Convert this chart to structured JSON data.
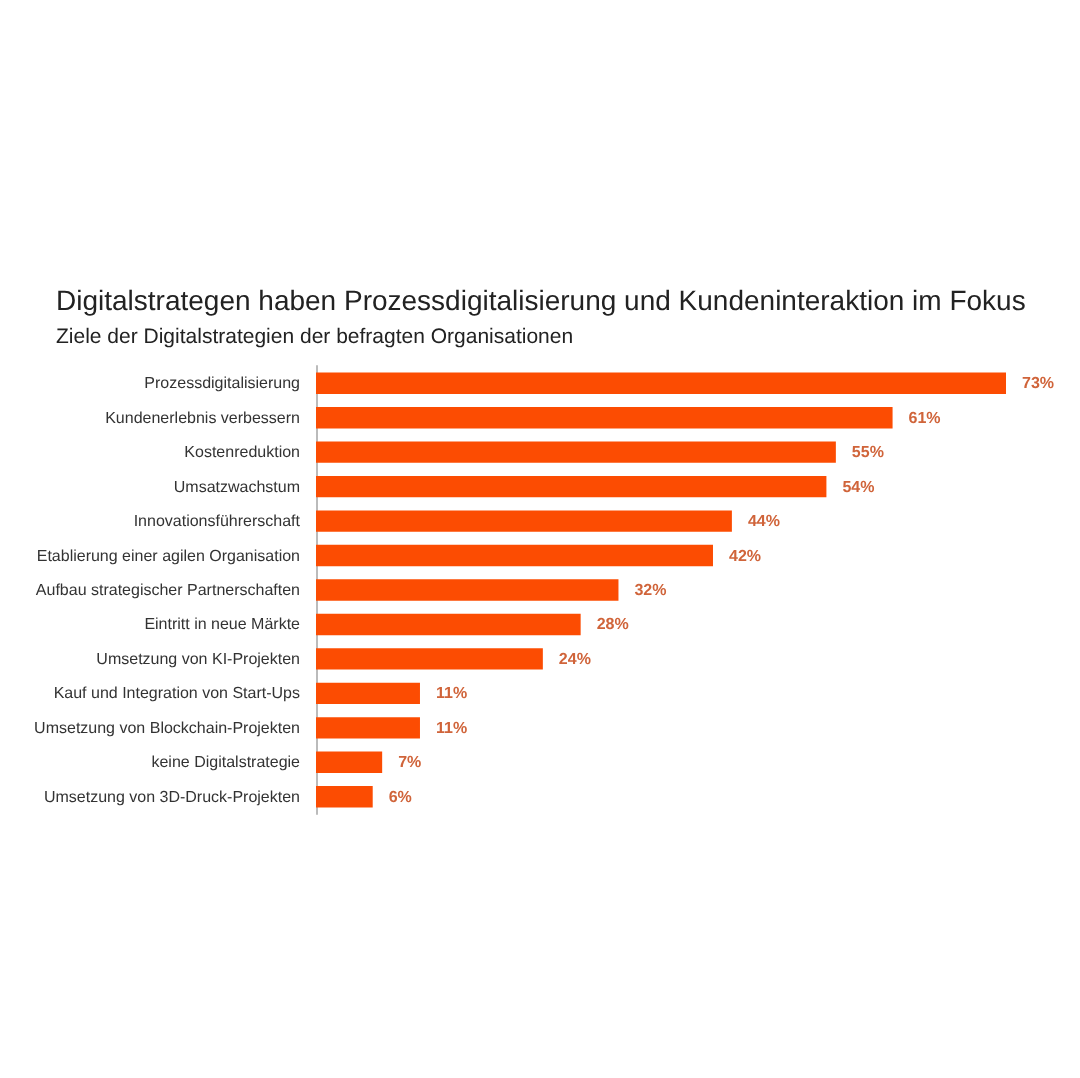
{
  "chart_data": {
    "type": "bar",
    "orientation": "horizontal",
    "title": "Digitalstrategen haben Prozessdigitalisierung und Kundeninteraktion im Fokus",
    "subtitle": "Ziele der Digitalstrategien der befragten Organisationen",
    "categories": [
      "Prozessdigitalisierung",
      "Kundenerlebnis verbessern",
      "Kostenreduktion",
      "Umsatzwachstum",
      "Innovationsführerschaft",
      "Etablierung einer agilen Organisation",
      "Aufbau strategischer Partnerschaften",
      "Eintritt in neue Märkte",
      "Umsetzung von KI-Projekten",
      "Kauf und Integration von Start-Ups",
      "Umsetzung von Blockchain-Projekten",
      "keine Digitalstrategie",
      "Umsetzung von 3D-Druck-Projekten"
    ],
    "values": [
      73,
      61,
      55,
      54,
      44,
      42,
      32,
      28,
      24,
      11,
      11,
      7,
      6
    ],
    "value_labels": [
      "73%",
      "61%",
      "55%",
      "54%",
      "44%",
      "42%",
      "32%",
      "28%",
      "24%",
      "11%",
      "11%",
      "7%",
      "6%"
    ],
    "color": "#fc4c02"
  }
}
